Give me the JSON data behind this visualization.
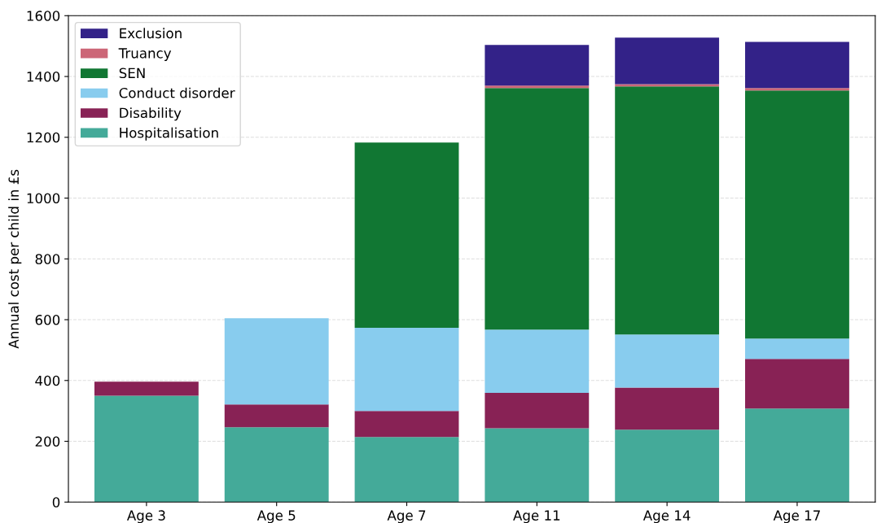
{
  "chart_data": {
    "type": "bar",
    "stacked": true,
    "ylabel": "Annual cost per child in £s",
    "categories": [
      "Age 3",
      "Age 5",
      "Age 7",
      "Age 11",
      "Age 14",
      "Age 17"
    ],
    "series": [
      {
        "name": "Hospitalisation",
        "color": "#44aa99",
        "values": [
          350,
          246,
          214,
          243,
          238,
          308
        ]
      },
      {
        "name": "Disability",
        "color": "#882255",
        "values": [
          46,
          75,
          86,
          116,
          139,
          163
        ]
      },
      {
        "name": "Conduct disorder",
        "color": "#88ccee",
        "values": [
          0,
          284,
          273,
          208,
          174,
          67
        ]
      },
      {
        "name": "SEN",
        "color": "#117733",
        "values": [
          0,
          0,
          610,
          795,
          816,
          816
        ]
      },
      {
        "name": "Truancy",
        "color": "#cc6677",
        "values": [
          0,
          0,
          0,
          8,
          8,
          8
        ]
      },
      {
        "name": "Exclusion",
        "color": "#332288",
        "values": [
          0,
          0,
          0,
          134,
          153,
          152
        ]
      }
    ],
    "ylim": [
      0,
      1600
    ],
    "yticks": [
      0,
      200,
      400,
      600,
      800,
      1000,
      1200,
      1400,
      1600
    ],
    "grid": "y",
    "legend": "top left"
  }
}
